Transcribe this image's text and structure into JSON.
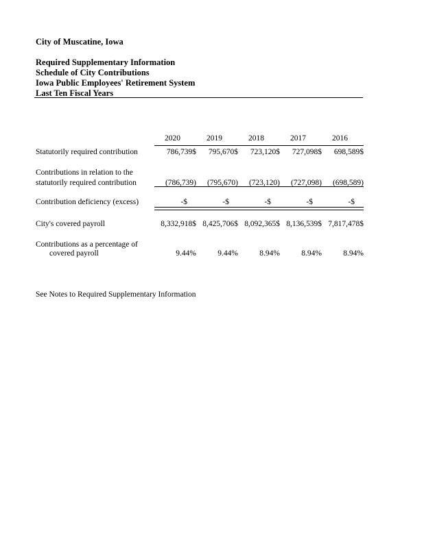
{
  "header": {
    "org": "City of Muscatine, Iowa",
    "lines": [
      "Required Supplementary Information",
      "Schedule of City Contributions",
      "Iowa Public Employees' Retirement System",
      "Last Ten Fiscal Years"
    ]
  },
  "table": {
    "years": [
      "2020",
      "2019",
      "2018",
      "2017",
      "2016"
    ],
    "rows": [
      {
        "label": "Statutorily required contribution",
        "values": [
          "786,739$",
          "795,670$",
          "723,120$",
          "727,098$",
          "698,589$"
        ]
      },
      {
        "label_line1": "Contributions in relation to the",
        "label_line2": "statutorily required contribution",
        "values": [
          "(786,739)",
          "(795,670)",
          "(723,120)",
          "(727,098)",
          "(698,589)"
        ]
      },
      {
        "label": "Contribution deficiency (excess)",
        "values": [
          "-$",
          "-$",
          "-$",
          "-$",
          "-$"
        ]
      },
      {
        "label": "City's covered payroll",
        "values": [
          "8,332,918$",
          "8,425,706$",
          "8,092,365$",
          "8,136,539$",
          "7,817,478$"
        ]
      },
      {
        "label_line1": "Contributions as a percentage of",
        "label_line2": "covered payroll",
        "values": [
          "9.44%",
          "9.44%",
          "8.94%",
          "8.94%",
          "8.94%"
        ]
      }
    ]
  },
  "footer": {
    "note": "See Notes to Required Supplementary Information"
  }
}
